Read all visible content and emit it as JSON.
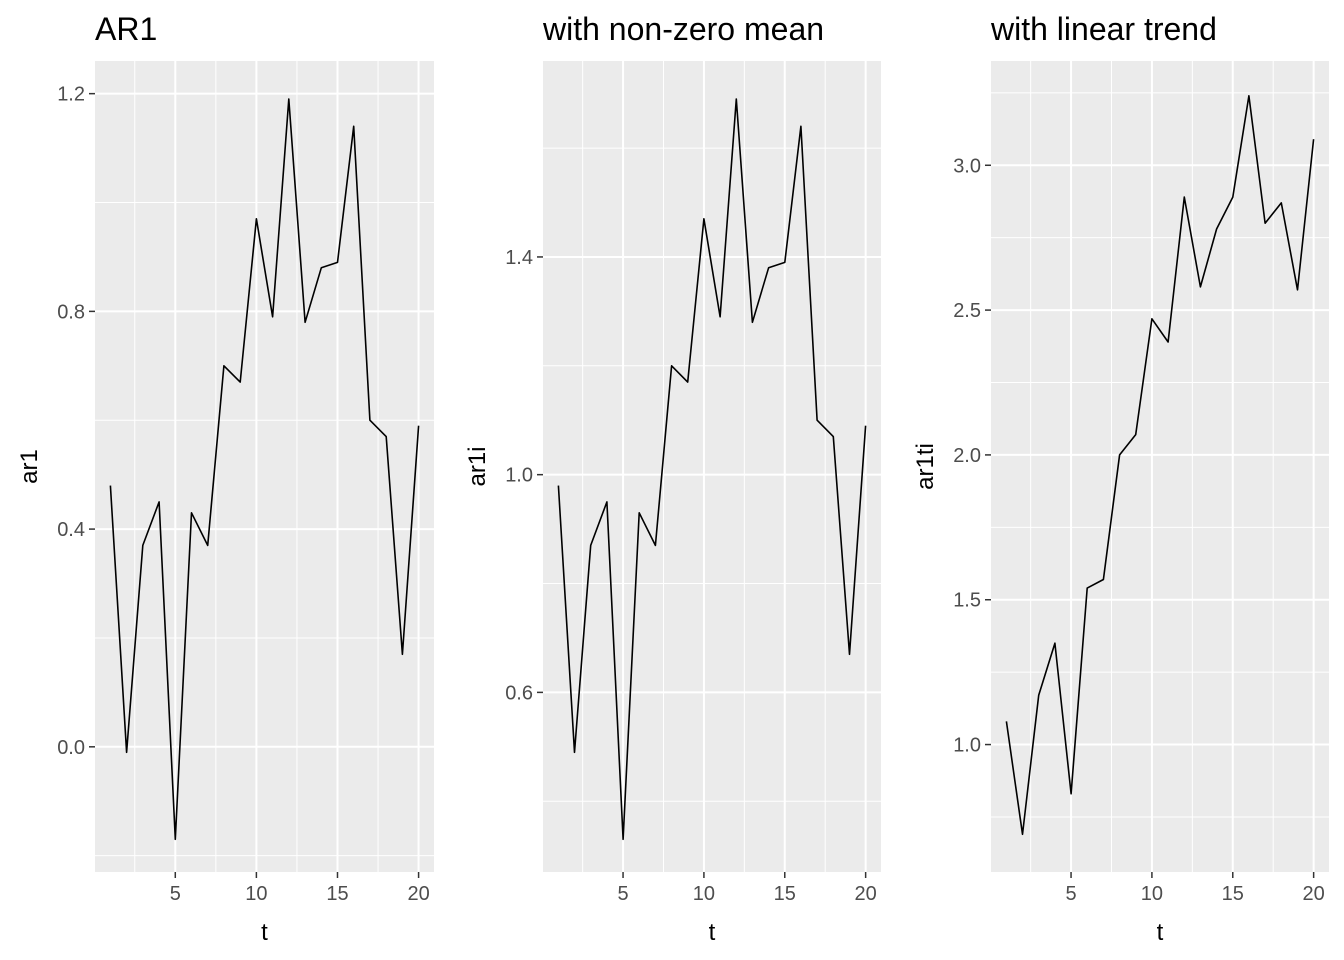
{
  "chart_data": [
    {
      "type": "line",
      "title": "AR1",
      "xlabel": "t",
      "ylabel": "ar1",
      "x": [
        1,
        2,
        3,
        4,
        5,
        6,
        7,
        8,
        9,
        10,
        11,
        12,
        13,
        14,
        15,
        16,
        17,
        18,
        19,
        20
      ],
      "series": [
        {
          "values": [
            0.48,
            -0.01,
            0.37,
            0.45,
            -0.17,
            0.43,
            0.37,
            0.7,
            0.67,
            0.97,
            0.79,
            1.19,
            0.78,
            0.88,
            0.89,
            1.14,
            0.6,
            0.57,
            0.17,
            0.59
          ]
        }
      ],
      "xlim": [
        0.05,
        20.95
      ],
      "ylim": [
        -0.23,
        1.26
      ],
      "xticks": [
        5,
        10,
        15,
        20
      ],
      "yticks": [
        0.0,
        0.4,
        0.8,
        1.2
      ],
      "ytick_labels": [
        "0.0",
        "0.4",
        "0.8",
        "1.2"
      ],
      "grid": true,
      "legend": "none",
      "line_color": "#000000",
      "panel_background": "#ebebeb",
      "grid_color": "#ffffff"
    },
    {
      "type": "line",
      "title": "with non-zero mean",
      "xlabel": "t",
      "ylabel": "ar1i",
      "x": [
        1,
        2,
        3,
        4,
        5,
        6,
        7,
        8,
        9,
        10,
        11,
        12,
        13,
        14,
        15,
        16,
        17,
        18,
        19,
        20
      ],
      "series": [
        {
          "values": [
            0.98,
            0.49,
            0.87,
            0.95,
            0.33,
            0.93,
            0.87,
            1.2,
            1.17,
            1.47,
            1.29,
            1.69,
            1.28,
            1.38,
            1.39,
            1.64,
            1.1,
            1.07,
            0.67,
            1.09
          ]
        }
      ],
      "xlim": [
        0.05,
        20.95
      ],
      "ylim": [
        0.27,
        1.76
      ],
      "xticks": [
        5,
        10,
        15,
        20
      ],
      "yticks": [
        0.6,
        1.0,
        1.4
      ],
      "ytick_labels": [
        "0.6",
        "1.0",
        "1.4"
      ],
      "grid": true,
      "legend": "none",
      "line_color": "#000000",
      "panel_background": "#ebebeb",
      "grid_color": "#ffffff"
    },
    {
      "type": "line",
      "title": "with linear trend",
      "xlabel": "t",
      "ylabel": "ar1ti",
      "x": [
        1,
        2,
        3,
        4,
        5,
        6,
        7,
        8,
        9,
        10,
        11,
        12,
        13,
        14,
        15,
        16,
        17,
        18,
        19,
        20
      ],
      "series": [
        {
          "values": [
            1.08,
            0.69,
            1.17,
            1.35,
            0.83,
            1.54,
            1.57,
            2.0,
            2.07,
            2.47,
            2.39,
            2.89,
            2.58,
            2.78,
            2.89,
            3.24,
            2.8,
            2.87,
            2.57,
            3.09
          ]
        }
      ],
      "xlim": [
        0.05,
        20.95
      ],
      "ylim": [
        0.56,
        3.36
      ],
      "xticks": [
        5,
        10,
        15,
        20
      ],
      "yticks": [
        1.0,
        1.5,
        2.0,
        2.5,
        3.0
      ],
      "ytick_labels": [
        "1.0",
        "1.5",
        "2.0",
        "2.5",
        "3.0"
      ],
      "grid": true,
      "legend": "none",
      "line_color": "#000000",
      "panel_background": "#ebebeb",
      "grid_color": "#ffffff"
    }
  ]
}
